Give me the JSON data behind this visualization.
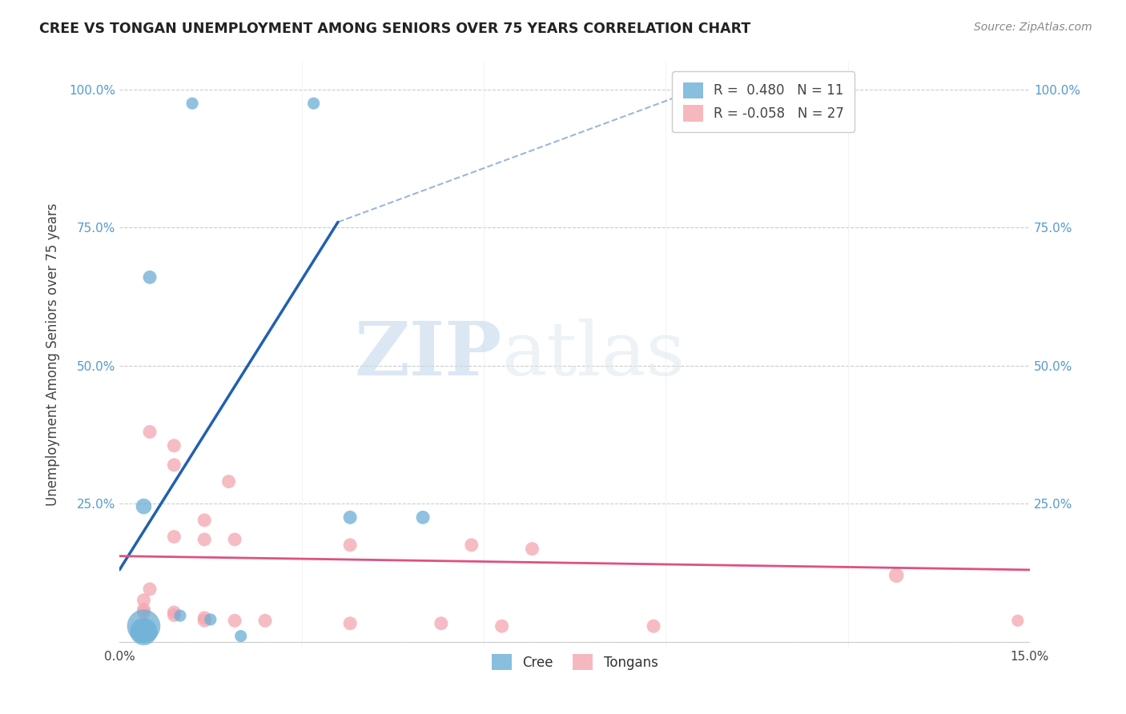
{
  "title": "CREE VS TONGAN UNEMPLOYMENT AMONG SENIORS OVER 75 YEARS CORRELATION CHART",
  "source": "Source: ZipAtlas.com",
  "ylabel": "Unemployment Among Seniors over 75 years",
  "xlim": [
    0.0,
    0.15
  ],
  "ylim": [
    -0.01,
    1.05
  ],
  "yticks": [
    0.0,
    0.25,
    0.5,
    0.75,
    1.0
  ],
  "cree_R": 0.48,
  "cree_N": 11,
  "tongan_R": -0.058,
  "tongan_N": 27,
  "cree_color": "#6baed6",
  "tongan_color": "#f4a6b0",
  "cree_line_color": "#2060b0",
  "tongan_line_color": "#e05080",
  "cree_line_solid": [
    [
      0.0,
      0.13
    ],
    [
      0.036,
      0.76
    ]
  ],
  "cree_line_dashed": [
    [
      0.036,
      0.76
    ],
    [
      0.1,
      1.02
    ]
  ],
  "tongan_line": [
    [
      0.0,
      0.155
    ],
    [
      0.15,
      0.13
    ]
  ],
  "cree_scatter": [
    [
      0.012,
      0.975
    ],
    [
      0.032,
      0.975
    ],
    [
      0.005,
      0.66
    ],
    [
      0.004,
      0.245
    ],
    [
      0.038,
      0.225
    ],
    [
      0.05,
      0.225
    ],
    [
      0.01,
      0.047
    ],
    [
      0.015,
      0.04
    ],
    [
      0.004,
      0.028
    ],
    [
      0.004,
      0.018
    ],
    [
      0.02,
      0.01
    ]
  ],
  "cree_sizes": [
    120,
    120,
    150,
    200,
    150,
    150,
    120,
    120,
    900,
    600,
    120
  ],
  "tongan_scatter": [
    [
      0.005,
      0.38
    ],
    [
      0.009,
      0.355
    ],
    [
      0.009,
      0.32
    ],
    [
      0.018,
      0.29
    ],
    [
      0.014,
      0.22
    ],
    [
      0.009,
      0.19
    ],
    [
      0.014,
      0.185
    ],
    [
      0.019,
      0.185
    ],
    [
      0.038,
      0.175
    ],
    [
      0.058,
      0.175
    ],
    [
      0.068,
      0.168
    ],
    [
      0.005,
      0.095
    ],
    [
      0.004,
      0.075
    ],
    [
      0.004,
      0.058
    ],
    [
      0.004,
      0.053
    ],
    [
      0.009,
      0.053
    ],
    [
      0.009,
      0.048
    ],
    [
      0.014,
      0.043
    ],
    [
      0.014,
      0.038
    ],
    [
      0.019,
      0.038
    ],
    [
      0.024,
      0.038
    ],
    [
      0.038,
      0.033
    ],
    [
      0.053,
      0.033
    ],
    [
      0.063,
      0.028
    ],
    [
      0.088,
      0.028
    ],
    [
      0.128,
      0.12
    ],
    [
      0.148,
      0.038
    ]
  ],
  "tongan_sizes": [
    150,
    150,
    150,
    150,
    150,
    150,
    150,
    150,
    150,
    150,
    150,
    150,
    150,
    150,
    150,
    150,
    150,
    150,
    150,
    150,
    150,
    150,
    150,
    150,
    150,
    180,
    120
  ],
  "watermark_zip": "ZIP",
  "watermark_atlas": "atlas",
  "background_color": "#ffffff",
  "grid_color": "#cccccc",
  "tick_color": "#5599cc"
}
